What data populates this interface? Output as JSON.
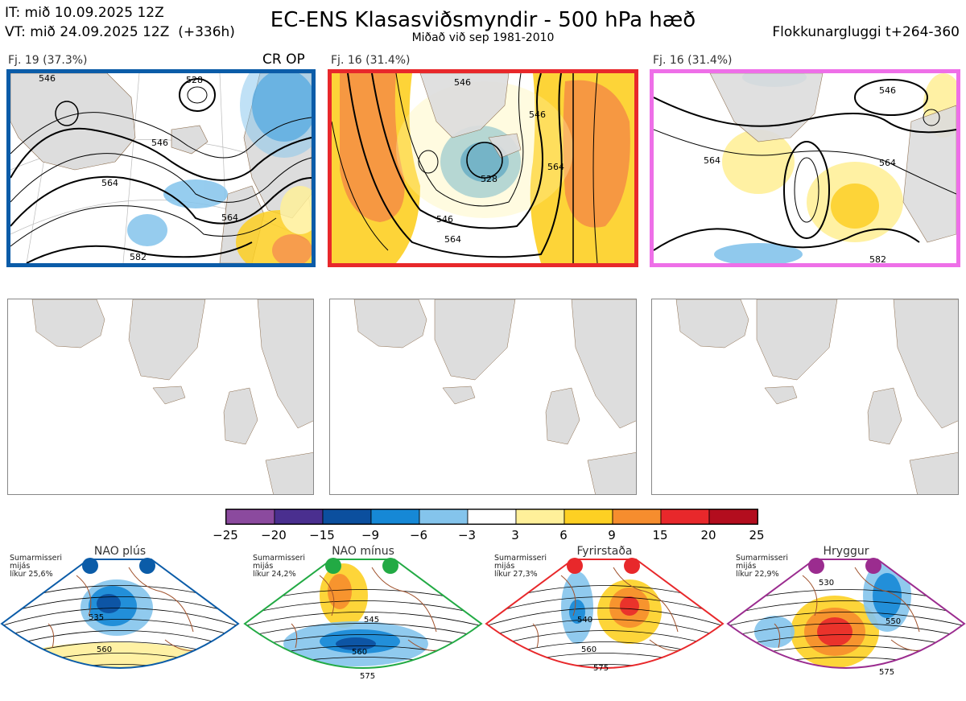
{
  "header": {
    "it": "IT: mið 10.09.2025 12Z",
    "vt": "VT: mið 24.09.2025 12Z  (+336h)",
    "title": "EC-ENS Klasasviðsmyndir - 500 hPa hæð",
    "subtitle": "Miðað við sep 1981-2010",
    "window": "Flokkunargluggi t+264-360"
  },
  "clusters": [
    {
      "label": "Fj. 19 (37.3%)",
      "extra": "CR OP",
      "border": "#0b5ca8",
      "contours": [
        "546",
        "546",
        "564",
        "564",
        "582",
        "528"
      ]
    },
    {
      "label": "Fj. 16 (31.4%)",
      "extra": "",
      "border": "#e8282b",
      "contours": [
        "546",
        "546",
        "564",
        "564",
        "528",
        "546"
      ]
    },
    {
      "label": "Fj. 16 (31.4%)",
      "extra": "",
      "border": "#ee6fe8",
      "contours": [
        "546",
        "564",
        "564",
        "582"
      ]
    }
  ],
  "colorbar": {
    "ticks": [
      "−25",
      "−20",
      "−15",
      "−9",
      "−6",
      "−3",
      "3",
      "6",
      "9",
      "15",
      "20",
      "25"
    ],
    "colors": [
      "#8b4a9e",
      "#4a2f8f",
      "#0b4f9e",
      "#1688d6",
      "#84c4ec",
      "#ffffff",
      "#fff09a",
      "#fdd023",
      "#f68d2e",
      "#e8282b",
      "#b30d1e"
    ]
  },
  "regimes": [
    {
      "name": "NAO plús",
      "season": "Sumarmisseri",
      "type": "mijás",
      "prob": "líkur 25,6%",
      "color": "#0b5ca8",
      "contours": [
        "535",
        "560"
      ]
    },
    {
      "name": "NAO mínus",
      "season": "Sumarmisseri",
      "type": "mijás",
      "prob": "líkur 24,2%",
      "color": "#22aa44",
      "contours": [
        "545",
        "560",
        "575"
      ]
    },
    {
      "name": "Fyrirstaða",
      "season": "Sumarmisseri",
      "type": "mijás",
      "prob": "líkur 27,3%",
      "color": "#e8282b",
      "contours": [
        "540",
        "560",
        "575"
      ]
    },
    {
      "name": "Hryggur",
      "season": "Sumarmisseri",
      "type": "mijás",
      "prob": "líkur 22,9%",
      "color": "#9b2c8f",
      "contours": [
        "530",
        "550",
        "575"
      ]
    }
  ]
}
